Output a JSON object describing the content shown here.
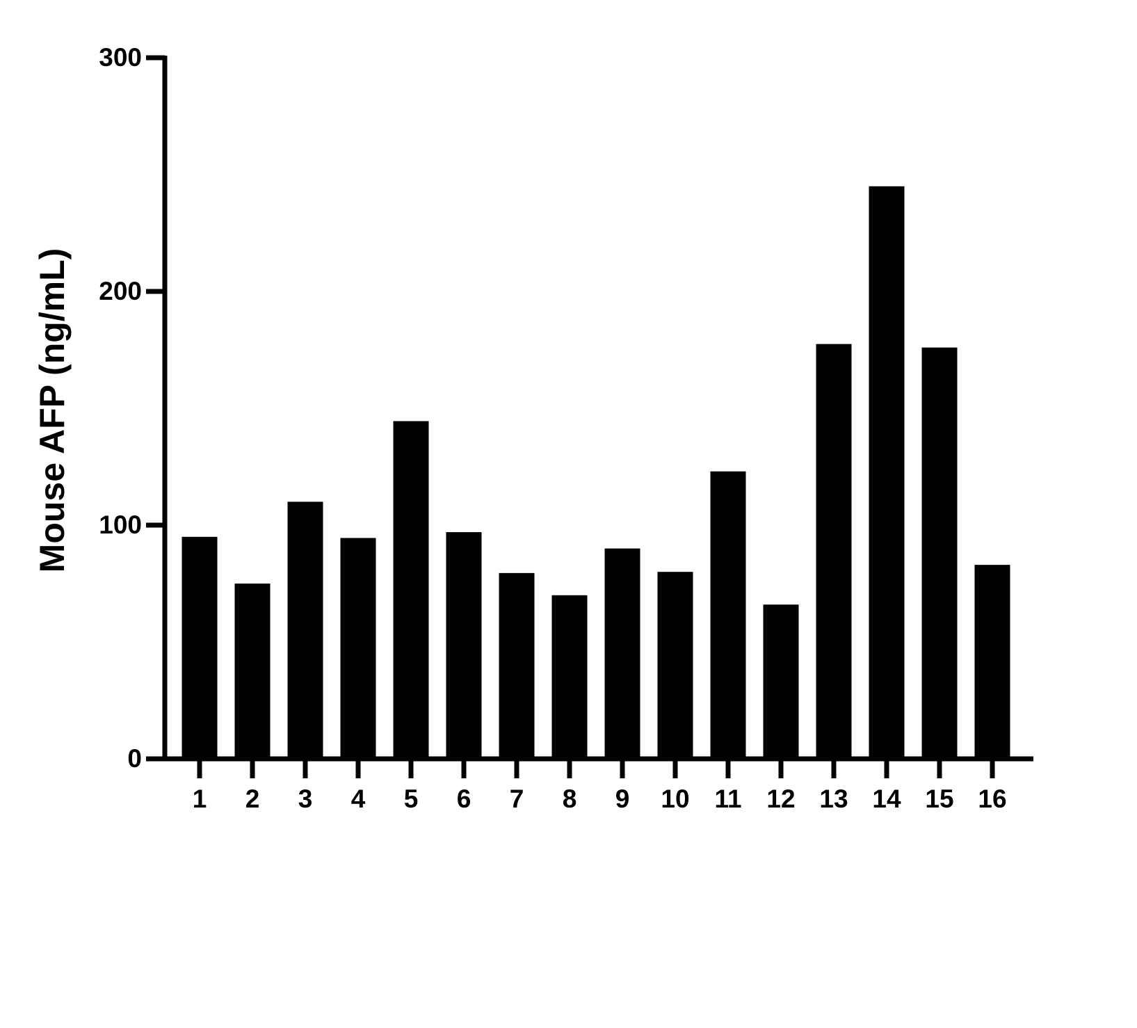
{
  "chart_data": {
    "type": "bar",
    "y_label": "Mouse AFP (ng/mL)",
    "categories": [
      "1",
      "2",
      "3",
      "4",
      "5",
      "6",
      "7",
      "8",
      "9",
      "10",
      "11",
      "12",
      "13",
      "14",
      "15",
      "16"
    ],
    "values": [
      95,
      75,
      110,
      94.5,
      144.5,
      97,
      79.5,
      70,
      90,
      80,
      123,
      66,
      177.5,
      245,
      176,
      83
    ],
    "color": "#000000",
    "ylim": [
      0,
      300
    ],
    "yticks": [
      0,
      100,
      200,
      300
    ],
    "grid": false
  }
}
